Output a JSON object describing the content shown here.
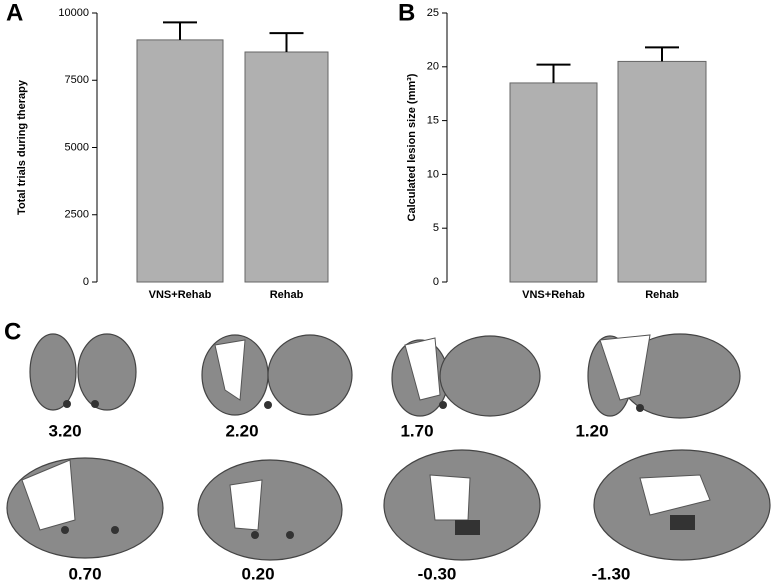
{
  "chart_data": [
    {
      "type": "bar",
      "panel_label": "A",
      "ylabel": "Total trials during therapy",
      "categories": [
        "VNS+Rehab",
        "Rehab"
      ],
      "values": [
        9000,
        8550
      ],
      "errors": [
        650,
        700
      ],
      "color": "#b0b0b0",
      "ylim": [
        0,
        10000
      ],
      "yticks": [
        0,
        2500,
        5000,
        7500,
        10000
      ]
    },
    {
      "type": "bar",
      "panel_label": "B",
      "ylabel": "Calculated lesion size (mm³)",
      "categories": [
        "VNS+Rehab",
        "Rehab"
      ],
      "values": [
        18.5,
        20.5
      ],
      "errors": [
        1.7,
        1.3
      ],
      "color": "#b0b0b0",
      "ylim": [
        0,
        25
      ],
      "yticks": [
        0,
        5,
        10,
        15,
        20,
        25
      ]
    }
  ],
  "sections": {
    "panel_label": "C",
    "labels": [
      "3.20",
      "2.20",
      "1.70",
      "1.20",
      "0.70",
      "0.20",
      "-0.30",
      "-1.30"
    ]
  }
}
